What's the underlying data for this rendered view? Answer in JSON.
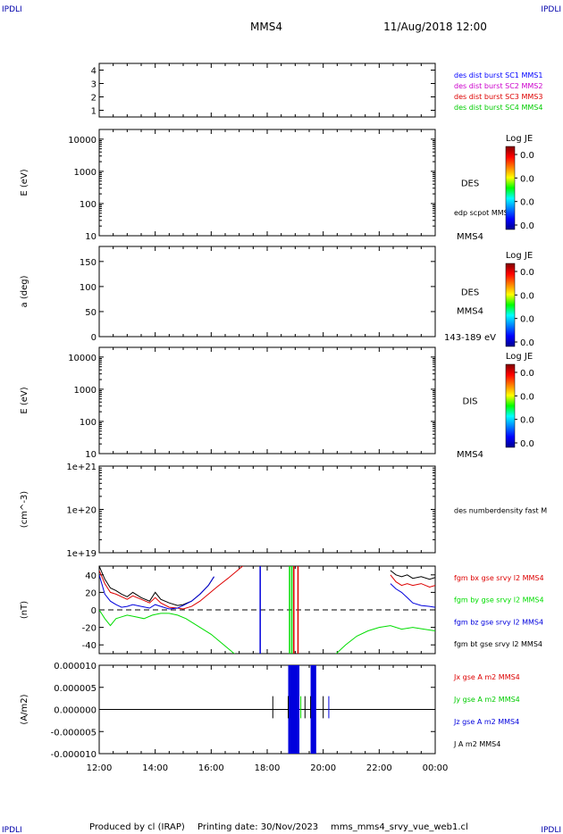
{
  "header": {
    "corner_tl": "IPDLI",
    "corner_tr": "IPDLI",
    "corner_bl": "IPDLI",
    "corner_br": "IPDLI",
    "spacecraft": "MMS4",
    "date": "11/Aug/2018 12:00"
  },
  "footer": {
    "producer": "Produced by cl (IRAP)",
    "printing_date": "Printing date: 30/Nov/2023",
    "file": "mms_mms4_srvy_vue_web1.cl"
  },
  "colors": {
    "mms1": "#0000ff",
    "mms2": "#cc00cc",
    "mms3": "#dd0000",
    "mms4": "#00cc00",
    "bx": "#dd0000",
    "by": "#00dd00",
    "bz": "#0000dd",
    "bt": "#000000"
  },
  "chart_data": [
    {
      "type": "line",
      "panel": "burst-availability",
      "ylabel": "",
      "ylim": [
        0.5,
        4.5
      ],
      "yticks": [
        "1",
        "2",
        "3",
        "4"
      ],
      "legend": [
        {
          "label": "des dist burst SC1 MMS1",
          "color": "#0000ff"
        },
        {
          "label": "des dist burst SC2 MMS2",
          "color": "#cc00cc"
        },
        {
          "label": "des dist burst SC3 MMS3",
          "color": "#dd0000"
        },
        {
          "label": "des dist burst SC4 MMS4",
          "color": "#00cc00"
        }
      ],
      "series": []
    },
    {
      "type": "heatmap",
      "panel": "des-energy",
      "ylabel": "E (eV)",
      "yscale": "log",
      "ylim": [
        10,
        20000
      ],
      "yticks": [
        "10",
        "100",
        "1000",
        "10000"
      ],
      "label": "DES",
      "overlay_label": "edp scpot MMS4",
      "bottom_label": "MMS4",
      "colorbar": {
        "title": "Log JE",
        "ticks": [
          "0.0",
          "0.0",
          "0.0",
          "0.0"
        ]
      }
    },
    {
      "type": "heatmap",
      "panel": "des-pitch-angle",
      "ylabel": "a (deg)",
      "ylim": [
        0,
        180
      ],
      "yticks": [
        "0",
        "50",
        "100",
        "150"
      ],
      "label": "DES",
      "sub_label": "MMS4",
      "bottom_label": "143-189 eV",
      "colorbar": {
        "title": "Log JE",
        "ticks": [
          "0.0",
          "0.0",
          "0.0",
          "0.0"
        ]
      }
    },
    {
      "type": "heatmap",
      "panel": "dis-energy",
      "ylabel": "E (eV)",
      "yscale": "log",
      "ylim": [
        10,
        20000
      ],
      "yticks": [
        "10",
        "100",
        "1000",
        "10000"
      ],
      "label": "DIS",
      "bottom_label": "MMS4",
      "colorbar": {
        "title": "Log JE",
        "ticks": [
          "0.0",
          "0.0",
          "0.0",
          "0.0"
        ]
      }
    },
    {
      "type": "line",
      "panel": "density",
      "ylabel": "(cm^-3)",
      "yscale": "log",
      "ylim": [
        1e+19,
        1e+21
      ],
      "yticks": [
        "1e+19",
        "1e+20",
        "1e+21"
      ],
      "legend": [
        {
          "label": "des numberdensity fast M",
          "color": "#000000"
        }
      ],
      "series": []
    },
    {
      "type": "line",
      "panel": "magnetic-field",
      "ylabel": "(nT)",
      "ylim": [
        -50,
        50
      ],
      "yticks": [
        "-40",
        "-20",
        "0",
        "20",
        "40"
      ],
      "zero_line": true,
      "legend": [
        {
          "label": "fgm bx gse srvy l2 MMS4",
          "color": "#dd0000"
        },
        {
          "label": "fgm by gse srvy l2 MMS4",
          "color": "#00dd00"
        },
        {
          "label": "fgm bz gse srvy l2 MMS4",
          "color": "#0000dd"
        },
        {
          "label": "fgm bt gse srvy l2 MMS4",
          "color": "#000000"
        }
      ],
      "series": [
        {
          "name": "fgm bt gse srvy l2 MMS4",
          "color": "#000000",
          "x": [
            0.0,
            0.2,
            0.4,
            0.6,
            0.8,
            1.0,
            1.2,
            1.5,
            1.8,
            2.0,
            2.2,
            2.5,
            2.8,
            3.0,
            3.3,
            3.6,
            3.9,
            4.1,
            10.4,
            10.6,
            10.8,
            11.0,
            11.2,
            11.5,
            11.8,
            12.0
          ],
          "y": [
            50,
            35,
            25,
            22,
            18,
            15,
            20,
            14,
            10,
            20,
            12,
            8,
            5,
            6,
            10,
            18,
            28,
            38,
            45,
            40,
            38,
            40,
            36,
            38,
            35,
            37
          ]
        },
        {
          "name": "fgm bx gse srvy l2 MMS4",
          "color": "#dd0000",
          "x": [
            0.0,
            0.2,
            0.4,
            0.6,
            0.8,
            1.0,
            1.2,
            1.5,
            1.8,
            2.0,
            2.2,
            2.5,
            2.8,
            3.0,
            3.3,
            3.6,
            3.9,
            4.2,
            4.6,
            4.9,
            5.2,
            5.4,
            10.4,
            10.6,
            10.8,
            11.0,
            11.2,
            11.5,
            11.8,
            12.0
          ],
          "y": [
            45,
            30,
            20,
            18,
            15,
            12,
            16,
            12,
            8,
            14,
            8,
            3,
            2,
            1,
            4,
            10,
            18,
            26,
            36,
            44,
            52,
            56,
            40,
            32,
            28,
            30,
            28,
            30,
            26,
            28
          ]
        },
        {
          "name": "fgm bz gse srvy l2 MMS4",
          "color": "#0000dd",
          "x": [
            0.0,
            0.2,
            0.4,
            0.6,
            0.8,
            1.0,
            1.2,
            1.5,
            1.8,
            2.0,
            2.2,
            2.5,
            2.8,
            3.0,
            3.3,
            3.6,
            3.9,
            4.1,
            10.4,
            10.6,
            10.8,
            11.0,
            11.2,
            11.5,
            11.8,
            12.0
          ],
          "y": [
            40,
            18,
            10,
            6,
            3,
            4,
            6,
            4,
            2,
            6,
            4,
            1,
            2,
            5,
            10,
            18,
            28,
            38,
            30,
            24,
            20,
            14,
            8,
            5,
            4,
            3
          ]
        },
        {
          "name": "fgm by gse srvy l2 MMS4",
          "color": "#00dd00",
          "x": [
            0.0,
            0.2,
            0.4,
            0.6,
            0.8,
            1.0,
            1.3,
            1.6,
            1.9,
            2.2,
            2.5,
            2.8,
            3.1,
            3.4,
            3.7,
            4.0,
            4.3,
            4.6,
            4.9,
            8.4,
            8.8,
            9.2,
            9.6,
            10.0,
            10.4,
            10.8,
            11.2,
            11.6,
            12.0
          ],
          "y": [
            0,
            -10,
            -18,
            -10,
            -8,
            -6,
            -8,
            -10,
            -6,
            -4,
            -4,
            -6,
            -10,
            -16,
            -22,
            -28,
            -36,
            -44,
            -52,
            -52,
            -40,
            -30,
            -24,
            -20,
            -18,
            -22,
            -20,
            -22,
            -24
          ]
        }
      ]
    },
    {
      "type": "line",
      "panel": "current-density",
      "ylabel": "(A/m2)",
      "xlabel": "",
      "ylim": [
        -1e-05,
        1e-05
      ],
      "yticks": [
        "-0.000010",
        "-0.000005",
        "0.000000",
        "0.000005",
        "0.000010"
      ],
      "xticks": [
        "12:00",
        "14:00",
        "16:00",
        "18:00",
        "20:00",
        "22:00",
        "00:00"
      ],
      "legend": [
        {
          "label": "Jx gse A m2 MMS4",
          "color": "#dd0000"
        },
        {
          "label": "Jy gse A m2 MMS4",
          "color": "#00cc00"
        },
        {
          "label": "Jz gse A m2 MMS4",
          "color": "#0000dd"
        },
        {
          "label": "J A m2 MMS4",
          "color": "#000000"
        }
      ],
      "series": []
    }
  ]
}
